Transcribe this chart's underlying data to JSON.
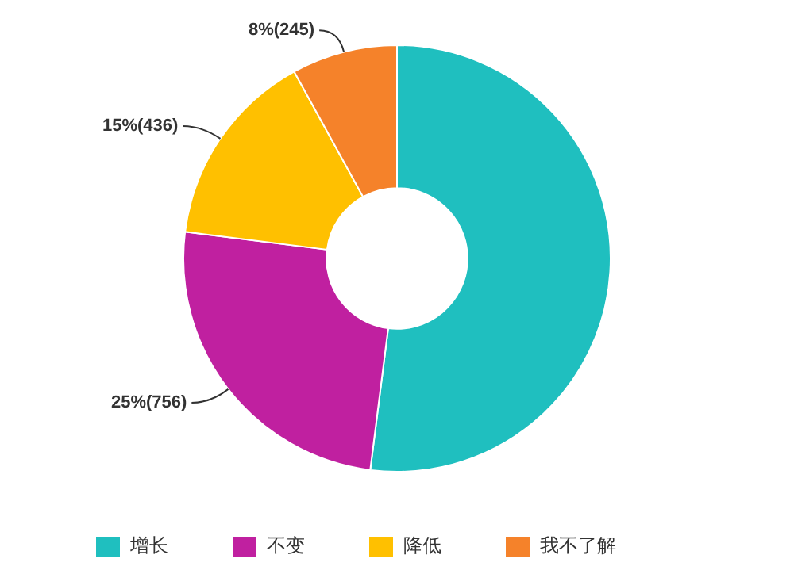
{
  "chart_data": {
    "type": "donut",
    "categories": [
      "增长",
      "不变",
      "降低",
      "我不了解"
    ],
    "values": [
      52,
      25,
      15,
      8
    ],
    "colors": [
      "#1fbfbf",
      "#c020a0",
      "#ffc000",
      "#f5822a"
    ],
    "value_labels": [
      null,
      "25%(756)",
      "15%(436)",
      "8%(245)"
    ],
    "legend": "bottom"
  }
}
